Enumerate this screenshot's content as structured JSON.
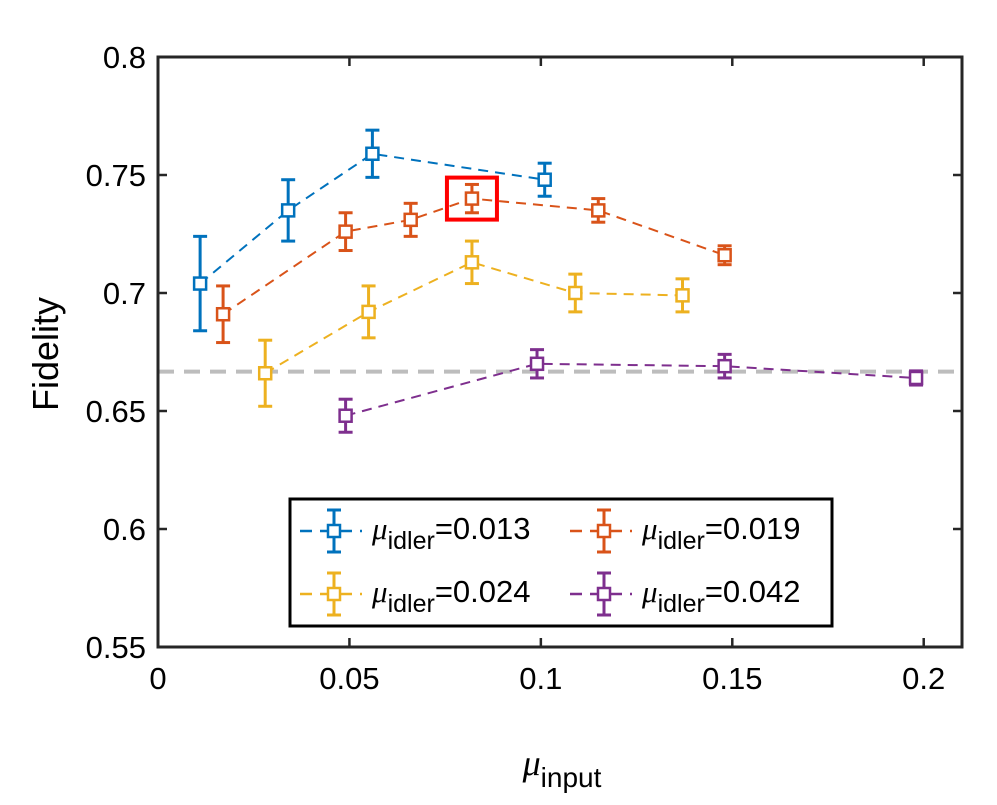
{
  "chart_data": {
    "type": "scatter",
    "title": "",
    "xlabel_symbol": "μ",
    "xlabel_sub": "input",
    "ylabel": "Fidelity",
    "xlim": [
      0,
      0.21
    ],
    "ylim": [
      0.55,
      0.8
    ],
    "xticks": [
      0,
      0.05,
      0.1,
      0.15,
      0.2
    ],
    "yticks": [
      0.55,
      0.6,
      0.65,
      0.7,
      0.75,
      0.8
    ],
    "xtick_labels": [
      "0",
      "0.05",
      "0.1",
      "0.15",
      "0.2"
    ],
    "ytick_labels": [
      "0.55",
      "0.6",
      "0.65",
      "0.7",
      "0.75",
      "0.8"
    ],
    "grid": false,
    "legend_position": "bottom-center",
    "threshold": {
      "y": 0.6667,
      "color": "#bdbdbd",
      "style": "dashed"
    },
    "highlight": {
      "x": 0.082,
      "y": 0.74,
      "color": "#ff0000"
    },
    "series": [
      {
        "name": "μ_idler=0.013",
        "legend_symbol": "μ",
        "legend_sub": "idler",
        "legend_value": "=0.013",
        "color": "#0072BD",
        "x": [
          0.011,
          0.034,
          0.056,
          0.101
        ],
        "y": [
          0.704,
          0.735,
          0.759,
          0.748
        ],
        "err": [
          0.02,
          0.013,
          0.01,
          0.007
        ]
      },
      {
        "name": "μ_idler=0.019",
        "legend_symbol": "μ",
        "legend_sub": "idler",
        "legend_value": "=0.019",
        "color": "#D95319",
        "x": [
          0.017,
          0.049,
          0.066,
          0.082,
          0.115,
          0.148
        ],
        "y": [
          0.691,
          0.726,
          0.731,
          0.74,
          0.735,
          0.716
        ],
        "err": [
          0.012,
          0.008,
          0.007,
          0.006,
          0.005,
          0.004
        ]
      },
      {
        "name": "μ_idler=0.024",
        "legend_symbol": "μ",
        "legend_sub": "idler",
        "legend_value": "=0.024",
        "color": "#EDB120",
        "x": [
          0.028,
          0.055,
          0.082,
          0.109,
          0.137
        ],
        "y": [
          0.666,
          0.692,
          0.713,
          0.7,
          0.699
        ],
        "err": [
          0.014,
          0.011,
          0.009,
          0.008,
          0.007
        ]
      },
      {
        "name": "μ_idler=0.042",
        "legend_symbol": "μ",
        "legend_sub": "idler",
        "legend_value": "=0.042",
        "color": "#7E2F8E",
        "x": [
          0.049,
          0.099,
          0.148,
          0.198
        ],
        "y": [
          0.648,
          0.67,
          0.669,
          0.664
        ],
        "err": [
          0.007,
          0.006,
          0.005,
          0.003
        ]
      }
    ]
  }
}
